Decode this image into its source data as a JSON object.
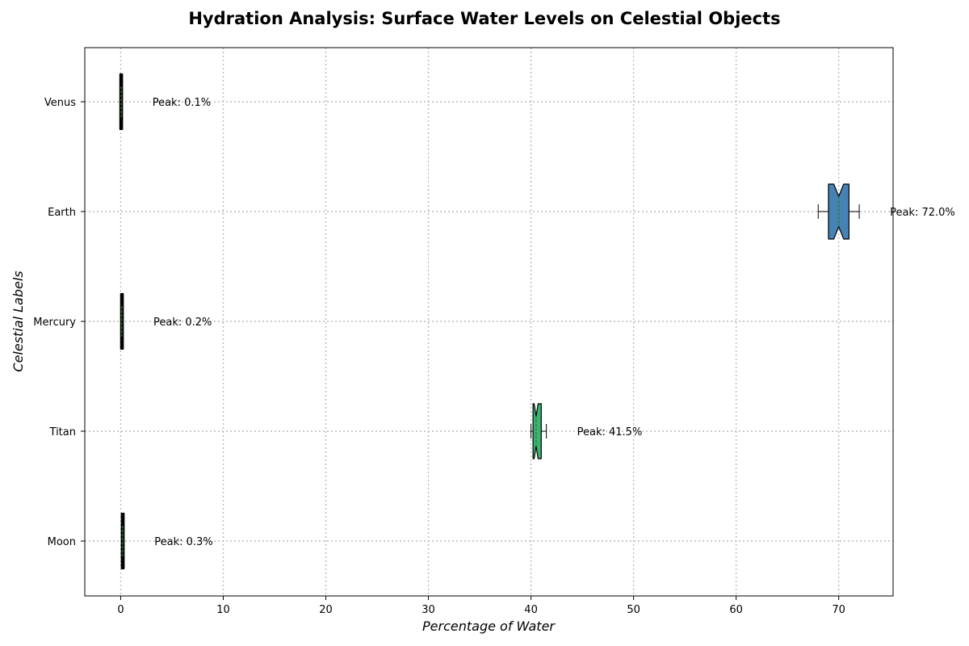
{
  "chart_data": {
    "type": "box",
    "orientation": "horizontal",
    "title": "Hydration Analysis: Surface Water Levels on Celestial Objects",
    "xlabel": "Percentage of Water",
    "ylabel": "Celestial Labels",
    "xlim": [
      -3.5,
      75.3
    ],
    "xticks": [
      0,
      10,
      20,
      30,
      40,
      50,
      60,
      70
    ],
    "grid": true,
    "categories": [
      "Moon",
      "Titan",
      "Mercury",
      "Earth",
      "Venus"
    ],
    "boxes": [
      {
        "label": "Moon",
        "whisker_low": 0.1,
        "q1": 0.1,
        "median": 0.2,
        "q3": 0.3,
        "whisker_high": 0.3,
        "color": "#2e8b57",
        "annotation": "Peak: 0.3%"
      },
      {
        "label": "Titan",
        "whisker_low": 40.0,
        "q1": 40.2,
        "median": 40.5,
        "q3": 41.0,
        "whisker_high": 41.5,
        "color": "#3cb371",
        "annotation": "Peak: 41.5%"
      },
      {
        "label": "Mercury",
        "whisker_low": 0.0,
        "q1": 0.05,
        "median": 0.1,
        "q3": 0.2,
        "whisker_high": 0.2,
        "color": "#2e8b57",
        "annotation": "Peak: 0.2%"
      },
      {
        "label": "Earth",
        "whisker_low": 68.0,
        "q1": 69.0,
        "median": 70.0,
        "q3": 71.0,
        "whisker_high": 72.0,
        "color": "#4682b4",
        "annotation": "Peak: 72.0%"
      },
      {
        "label": "Venus",
        "whisker_low": 0.0,
        "q1": 0.0,
        "median": 0.05,
        "q3": 0.1,
        "whisker_high": 0.1,
        "color": "#2e8b57",
        "annotation": "Peak: 0.1%"
      }
    ]
  }
}
